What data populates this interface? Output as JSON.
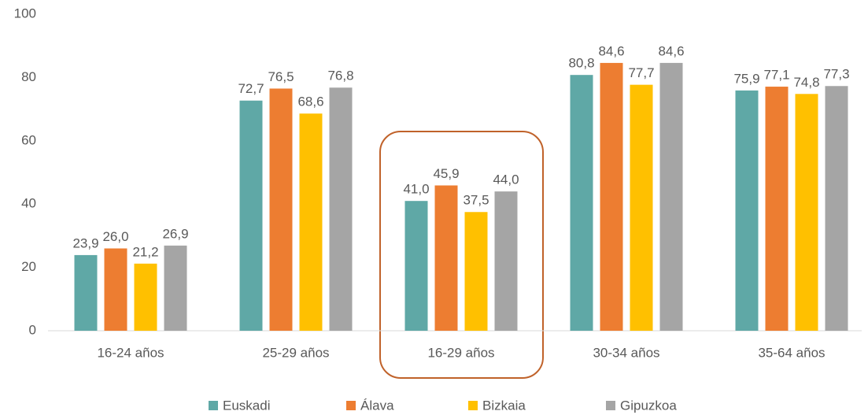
{
  "chart_data": {
    "type": "bar",
    "categories": [
      "16-24 años",
      "25-29 años",
      "16-29 años",
      "30-34 años",
      "35-64 años"
    ],
    "series": [
      {
        "name": "Euskadi",
        "color": "#5fa8a6",
        "values": [
          23.9,
          72.7,
          41.0,
          80.8,
          75.9
        ],
        "value_labels": [
          "23,9",
          "72,7",
          "41,0",
          "80,8",
          "75,9"
        ]
      },
      {
        "name": "Álava",
        "color": "#ed7d31",
        "values": [
          26.0,
          76.5,
          45.9,
          84.6,
          77.1
        ],
        "value_labels": [
          "26,0",
          "76,5",
          "45,9",
          "84,6",
          "77,1"
        ]
      },
      {
        "name": "Bizkaia",
        "color": "#ffc000",
        "values": [
          21.2,
          68.6,
          37.5,
          77.7,
          74.8
        ],
        "value_labels": [
          "21,2",
          "68,6",
          "37,5",
          "77,7",
          "74,8"
        ]
      },
      {
        "name": "Gipuzkoa",
        "color": "#a5a5a5",
        "values": [
          26.9,
          76.8,
          44.0,
          84.6,
          77.3
        ],
        "value_labels": [
          "26,9",
          "76,8",
          "44,0",
          "84,6",
          "77,3"
        ]
      }
    ],
    "ylim": [
      0,
      100
    ],
    "yticks": [
      0,
      20,
      40,
      60,
      80,
      100
    ],
    "grid": false,
    "legend": "bottom"
  }
}
